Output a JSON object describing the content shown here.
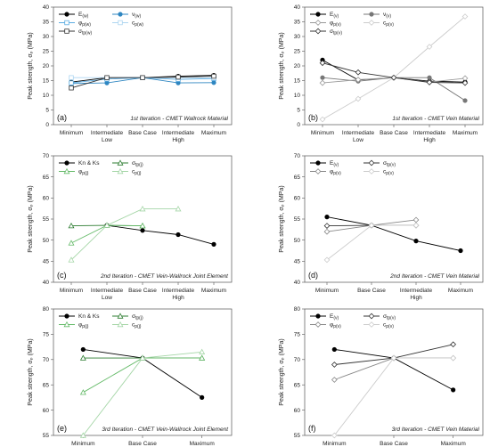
{
  "figure": {
    "panels": [
      {
        "letter": "(a)",
        "caption": "1st Iteration - CMET Wallrock Material",
        "ylabel": "Peak strength, σₚ (MPa)",
        "ylim": [
          0,
          40
        ],
        "yticks": [
          "0",
          "5",
          "10",
          "15",
          "20",
          "25",
          "30",
          "35",
          "40"
        ],
        "categories": [
          "Minimum",
          "Intermediate Low",
          "Base Case",
          "Intermediate High",
          "Maximum"
        ],
        "cat_labels": [
          [
            "Minimum"
          ],
          [
            "Intermediate",
            "Low"
          ],
          [
            "Base Case"
          ],
          [
            "Intermediate",
            "High"
          ],
          [
            "Maximum"
          ]
        ]
      },
      {
        "letter": "(b)",
        "caption": "1st Iteration - CMET Vein Material",
        "ylabel": "Peak strength, σₚ (MPa)",
        "ylim": [
          0,
          40
        ],
        "yticks": [
          "0",
          "5",
          "10",
          "15",
          "20",
          "25",
          "30",
          "35",
          "40"
        ],
        "categories": [
          "Minimum",
          "Intermediate Low",
          "Base Case",
          "Intermediate High",
          "Maximum"
        ],
        "cat_labels": [
          [
            "Minimum"
          ],
          [
            "Intermediate",
            "Low"
          ],
          [
            "Base Case"
          ],
          [
            "Intermediate",
            "High"
          ],
          [
            "Maximum"
          ]
        ]
      },
      {
        "letter": "(c)",
        "caption": "2nd Iteration - CMET Vein-Wallrock Joint Element",
        "ylabel": "Peak strength, σₚ (MPa)",
        "ylim": [
          40,
          70
        ],
        "yticks": [
          "40",
          "45",
          "50",
          "55",
          "60",
          "65",
          "70"
        ],
        "categories": [
          "Minimum",
          "Intermediate Low",
          "Base Case",
          "Intermediate High",
          "Maximum"
        ],
        "cat_labels": [
          [
            "Minimum"
          ],
          [
            "Intermediate",
            "Low"
          ],
          [
            "Base Case"
          ],
          [
            "Intermediate",
            "High"
          ],
          [
            "Maximum"
          ]
        ]
      },
      {
        "letter": "(d)",
        "caption": "2nd Iteration - CMET Vein Material",
        "ylabel": "Peak strength, σₚ (MPa)",
        "ylim": [
          40,
          70
        ],
        "yticks": [
          "40",
          "45",
          "50",
          "55",
          "60",
          "65",
          "70"
        ],
        "categories": [
          "Minimum",
          "Base Case",
          "Intermediate High",
          "Maximum"
        ],
        "cat_labels": [
          [
            "Minimum"
          ],
          [
            "Base Case"
          ],
          [
            "Intermediate",
            "High"
          ],
          [
            "Maximum"
          ]
        ]
      },
      {
        "letter": "(e)",
        "caption": "3rd Iteration - CMET Vein-Wallrock Joint Element",
        "ylabel": "Peak strength, σₚ (MPa)",
        "ylim": [
          55,
          80
        ],
        "yticks": [
          "55",
          "60",
          "65",
          "70",
          "75",
          "80"
        ],
        "categories": [
          "Minimum",
          "Base Case",
          "Maximum"
        ],
        "cat_labels": [
          [
            "Minimum"
          ],
          [
            "Base Case"
          ],
          [
            "Maximum"
          ]
        ]
      },
      {
        "letter": "(f)",
        "caption": "3rd Iteration - CMET Vein Material",
        "ylabel": "Peak strength, σₚ (MPa)",
        "ylim": [
          55,
          80
        ],
        "yticks": [
          "55",
          "60",
          "65",
          "70",
          "75",
          "80"
        ],
        "categories": [
          "Minimum",
          "Base Case",
          "Maximum"
        ],
        "cat_labels": [
          [
            "Minimum"
          ],
          [
            "Base Case"
          ],
          [
            "Maximum"
          ]
        ]
      }
    ]
  },
  "chart_data": [
    {
      "type": "line",
      "title": "",
      "ylabel": "Peak strength, σp (MPa)",
      "ylim": [
        0,
        40
      ],
      "categories": [
        "Minimum",
        "Intermediate Low",
        "Base Case",
        "Intermediate High",
        "Maximum"
      ],
      "legend": {
        "placement": "top-left",
        "cols": 2
      },
      "series": [
        {
          "name": "E(w)",
          "marker": "circle-filled",
          "color": "#000000",
          "values": [
            14.5,
            16,
            16,
            16.5,
            16.8
          ]
        },
        {
          "name": "ν(w)",
          "marker": "circle-filled",
          "color": "#2e86c1",
          "values": [
            14,
            14.2,
            16,
            14.2,
            14.3
          ]
        },
        {
          "name": "φp(w)",
          "marker": "square-open",
          "color": "#5dade2",
          "values": [
            14.2,
            15.5,
            16,
            15.4,
            15.7
          ]
        },
        {
          "name": "cp(w)",
          "marker": "square-open",
          "color": "#aed6f1",
          "values": [
            16,
            16,
            16,
            16,
            16
          ]
        },
        {
          "name": "σtp(w)",
          "marker": "square-open",
          "color": "#333333",
          "values": [
            12.5,
            16,
            16,
            16.2,
            16.5
          ]
        }
      ]
    },
    {
      "type": "line",
      "title": "",
      "ylabel": "Peak strength, σp (MPa)",
      "ylim": [
        0,
        40
      ],
      "categories": [
        "Minimum",
        "Intermediate Low",
        "Base Case",
        "Intermediate High",
        "Maximum"
      ],
      "legend": {
        "placement": "top-left",
        "cols": 2
      },
      "series": [
        {
          "name": "E(v)",
          "marker": "circle-filled",
          "color": "#000000",
          "values": [
            22,
            15.2,
            16,
            14.8,
            14.5
          ]
        },
        {
          "name": "ν(v)",
          "marker": "circle-filled",
          "color": "#777777",
          "values": [
            16,
            14.8,
            16,
            16,
            8.2
          ]
        },
        {
          "name": "φp(v)",
          "marker": "diamond-open",
          "color": "#999999",
          "values": [
            14.2,
            15.3,
            16,
            14.5,
            15.8
          ]
        },
        {
          "name": "cp(v)",
          "marker": "diamond-open",
          "color": "#cccccc",
          "values": [
            1.8,
            8.8,
            16,
            26.5,
            36.8
          ]
        },
        {
          "name": "σtp(v)",
          "marker": "diamond-open",
          "color": "#333333",
          "values": [
            21,
            17.8,
            16,
            14.4,
            14.2
          ]
        }
      ]
    },
    {
      "type": "line",
      "title": "",
      "ylabel": "Peak strength, σp (MPa)",
      "ylim": [
        40,
        70
      ],
      "categories": [
        "Minimum",
        "Intermediate Low",
        "Base Case",
        "Intermediate High",
        "Maximum"
      ],
      "legend": {
        "placement": "top-left",
        "cols": 2
      },
      "series": [
        {
          "name": "Kn & Ks",
          "marker": "circle-filled",
          "color": "#000000",
          "values": [
            null,
            53.5,
            52.3,
            51.3,
            49
          ]
        },
        {
          "name": "σtp(j)",
          "marker": "triangle-open",
          "color": "#2e7d32",
          "values": [
            53.4,
            53.5,
            53.4,
            null,
            null
          ]
        },
        {
          "name": "φp(j)",
          "marker": "triangle-open",
          "color": "#66bb6a",
          "values": [
            49.3,
            53.5,
            53.4,
            null,
            null
          ]
        },
        {
          "name": "cp(j)",
          "marker": "triangle-open",
          "color": "#a5d6a7",
          "values": [
            45.3,
            53.5,
            57.4,
            57.4,
            null
          ]
        }
      ]
    },
    {
      "type": "line",
      "title": "",
      "ylabel": "Peak strength, σp (MPa)",
      "ylim": [
        40,
        70
      ],
      "categories": [
        "Minimum",
        "Base Case",
        "Intermediate High",
        "Maximum"
      ],
      "legend": {
        "placement": "top-left",
        "cols": 2
      },
      "series": [
        {
          "name": "E(v)",
          "marker": "circle-filled",
          "color": "#000000",
          "values": [
            55.5,
            53.5,
            49.8,
            47.5
          ]
        },
        {
          "name": "σtp(v)",
          "marker": "diamond-open",
          "color": "#333333",
          "values": [
            53.4,
            53.5,
            53.5,
            null
          ]
        },
        {
          "name": "φp(v)",
          "marker": "diamond-open",
          "color": "#888888",
          "values": [
            52,
            53.5,
            54.8,
            null
          ]
        },
        {
          "name": "cp(v)",
          "marker": "diamond-open",
          "color": "#cccccc",
          "values": [
            45.3,
            53.5,
            53.5,
            null
          ]
        }
      ]
    },
    {
      "type": "line",
      "title": "",
      "ylabel": "Peak strength, σp (MPa)",
      "ylim": [
        55,
        80
      ],
      "categories": [
        "Minimum",
        "Base Case",
        "Maximum"
      ],
      "legend": {
        "placement": "top-left",
        "cols": 2
      },
      "series": [
        {
          "name": "Kn & Ks",
          "marker": "circle-filled",
          "color": "#000000",
          "values": [
            72,
            70.3,
            62.5
          ]
        },
        {
          "name": "σtp(j)",
          "marker": "triangle-open",
          "color": "#2e7d32",
          "values": [
            70.3,
            70.3,
            70.3
          ]
        },
        {
          "name": "φp(j)",
          "marker": "triangle-open",
          "color": "#66bb6a",
          "values": [
            63.5,
            70.3,
            70.3
          ]
        },
        {
          "name": "cp(j)",
          "marker": "triangle-open",
          "color": "#a5d6a7",
          "values": [
            55,
            70.3,
            71.5
          ]
        }
      ]
    },
    {
      "type": "line",
      "title": "",
      "ylabel": "Peak strength, σp (MPa)",
      "ylim": [
        55,
        80
      ],
      "categories": [
        "Minimum",
        "Base Case",
        "Maximum"
      ],
      "legend": {
        "placement": "top-left",
        "cols": 2
      },
      "series": [
        {
          "name": "E(v)",
          "marker": "circle-filled",
          "color": "#000000",
          "values": [
            72,
            70.3,
            64
          ]
        },
        {
          "name": "σtp(v)",
          "marker": "diamond-open",
          "color": "#333333",
          "values": [
            69,
            70.3,
            73
          ]
        },
        {
          "name": "φp(v)",
          "marker": "diamond-open",
          "color": "#888888",
          "values": [
            66,
            70.3,
            70.3
          ]
        },
        {
          "name": "cp(v)",
          "marker": "diamond-open",
          "color": "#cccccc",
          "values": [
            55,
            70.3,
            70.3
          ]
        }
      ]
    }
  ]
}
